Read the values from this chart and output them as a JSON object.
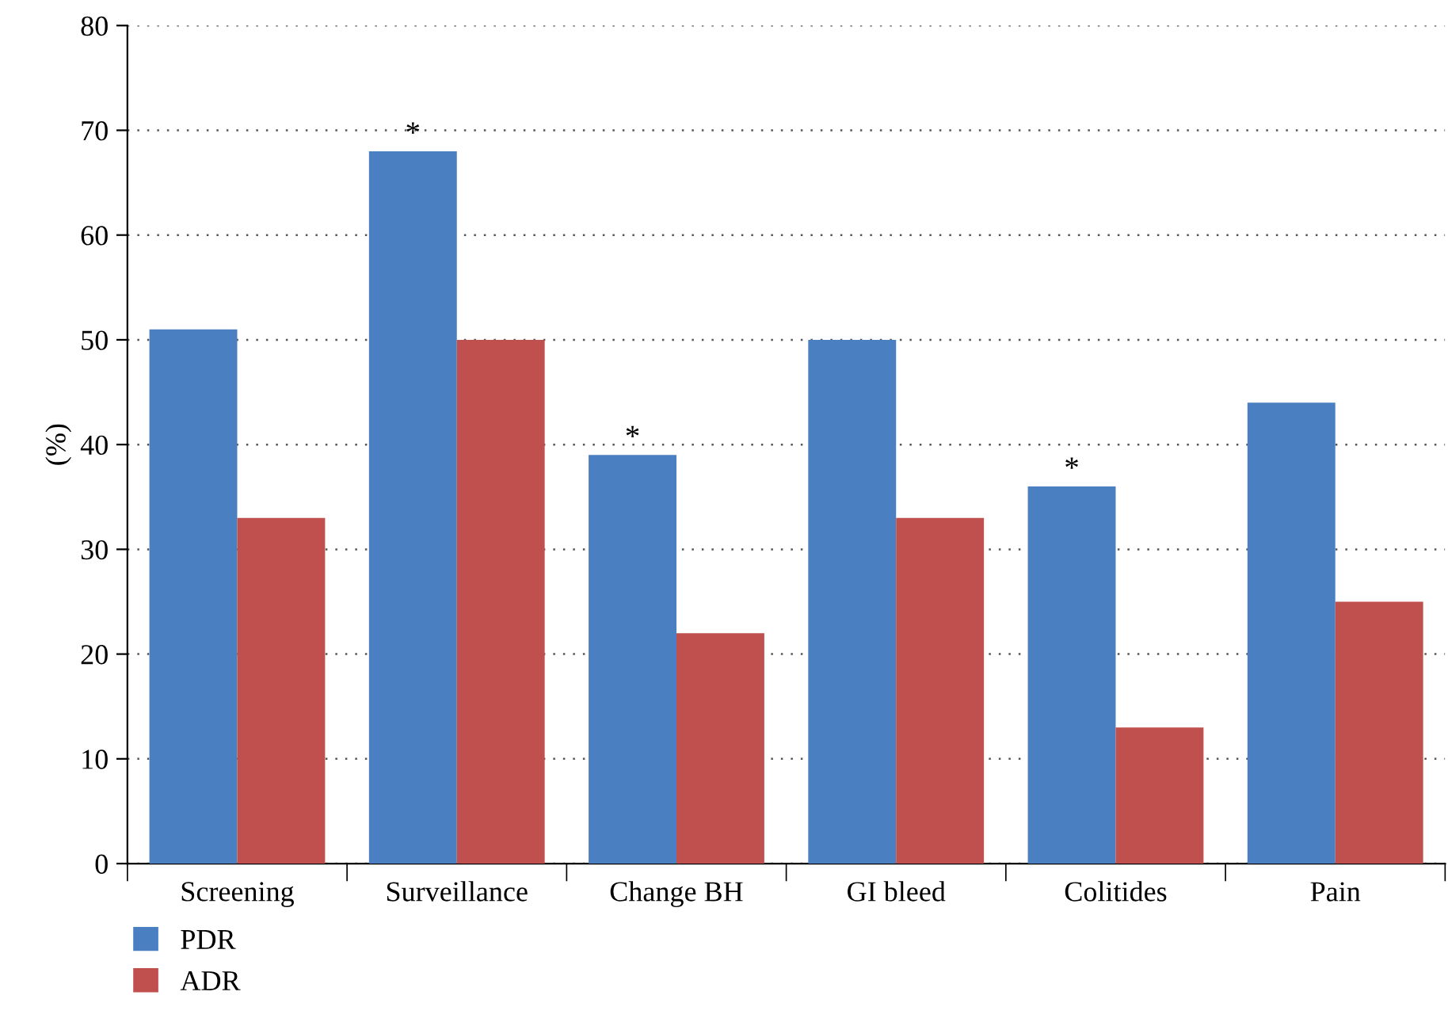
{
  "chart_data": {
    "type": "bar",
    "ylabel": "(%)",
    "categories": [
      "Screening",
      "Surveillance",
      "Change BH",
      "GI bleed",
      "Colitides",
      "Pain"
    ],
    "series": [
      {
        "name": "PDR",
        "color": "#4a7fc1",
        "values": [
          51,
          68,
          39,
          50,
          36,
          44
        ]
      },
      {
        "name": "ADR",
        "color": "#c0504d",
        "values": [
          33,
          50,
          22,
          33,
          13,
          25
        ]
      }
    ],
    "ylim": [
      0,
      80
    ],
    "yticks": [
      0,
      10,
      20,
      30,
      40,
      50,
      60,
      70,
      80
    ],
    "grid": "y",
    "legend": "bottom left",
    "annotations": [
      {
        "text": "*",
        "x": "Surveillance",
        "y": 68
      },
      {
        "text": "*",
        "x": "Change BH",
        "y": 39
      },
      {
        "text": "*",
        "x": "Colitides",
        "y": 36
      }
    ]
  }
}
